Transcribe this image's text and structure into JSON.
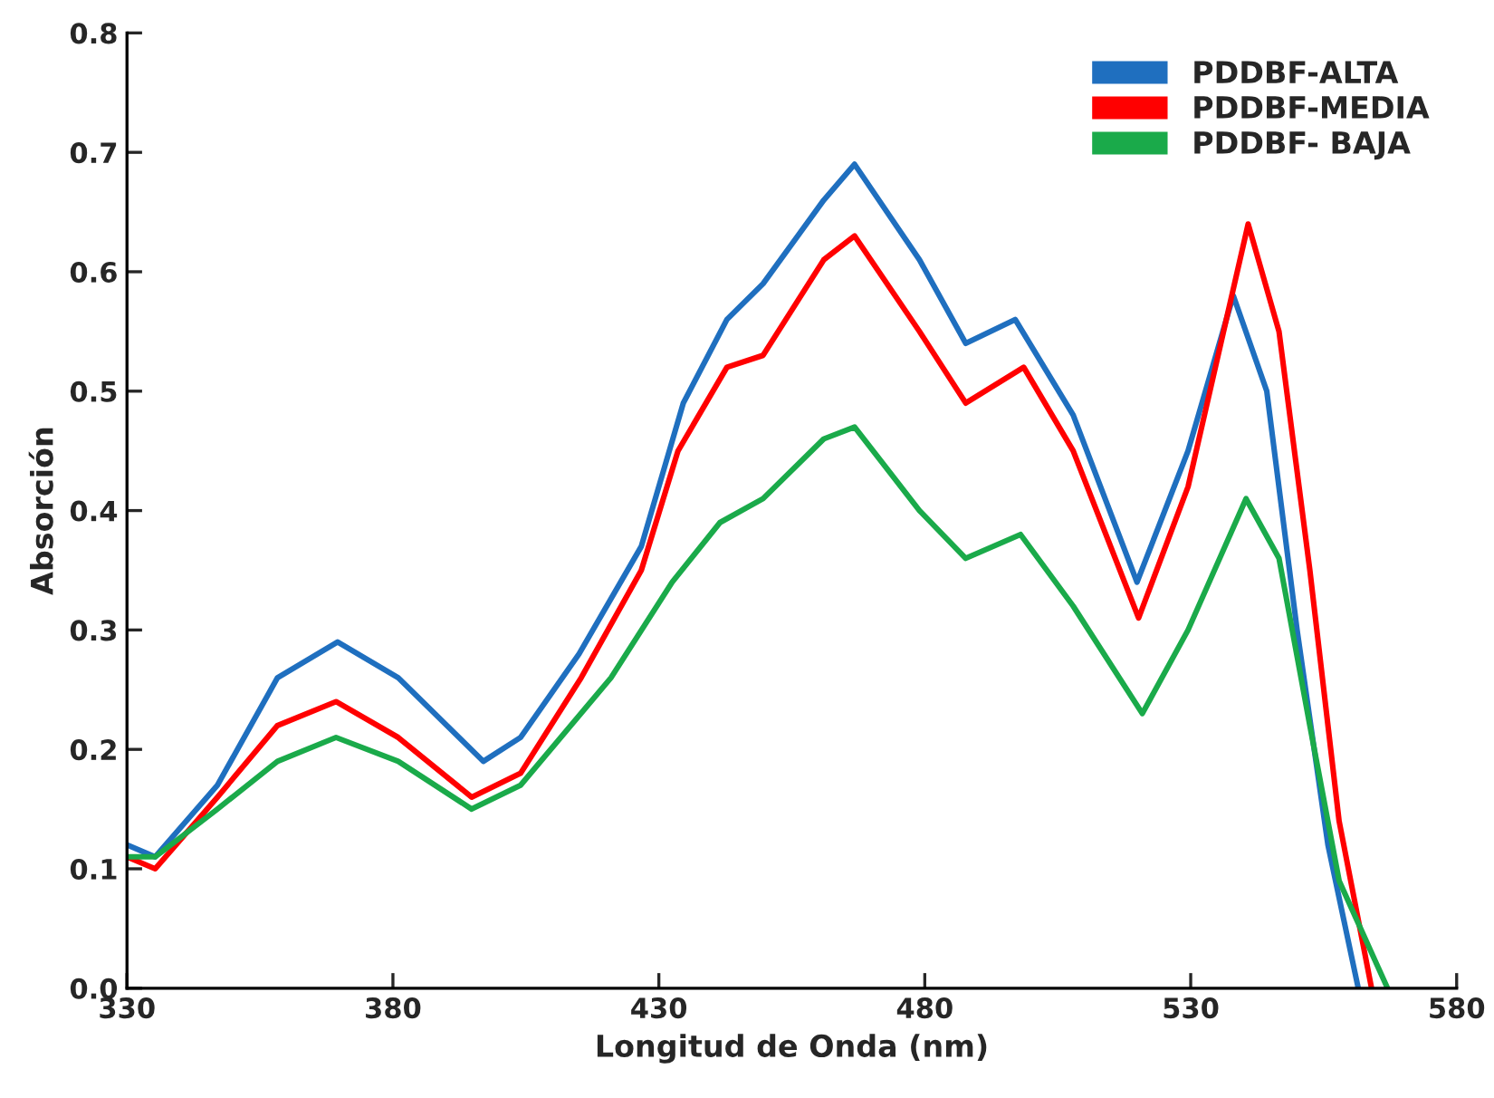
{
  "chart_data": {
    "type": "line",
    "xlabel": "Longitud de Onda (nm)",
    "ylabel": "Absorción",
    "xlim": [
      330,
      580
    ],
    "xticks": [
      330,
      380,
      430,
      480,
      530,
      580
    ],
    "ylim": [
      0,
      0.8
    ],
    "yticks": [
      {
        "value": 0,
        "label": "0.0"
      },
      0.1,
      0.2,
      0.3,
      0.4,
      0.5,
      0.6,
      0.7,
      0.8
    ],
    "grid": false,
    "legend": "top right",
    "line_style": "solid",
    "marker": "none",
    "series": [
      {
        "name": "PDDBF-ALTA",
        "color": "#1f6fbf",
        "x": [
          330,
          335.3,
          347,
          358.3,
          369.6,
          381,
          397,
          404,
          415,
          426.7,
          434.6,
          442.8,
          449.6,
          461,
          466.8,
          479,
          487.7,
          497,
          507.9,
          519.9,
          529.5,
          538,
          544.3,
          550,
          555.8,
          561.5
        ],
        "values": [
          0.12,
          0.11,
          0.17,
          0.26,
          0.29,
          0.26,
          0.19,
          0.21,
          0.28,
          0.37,
          0.49,
          0.56,
          0.59,
          0.66,
          0.69,
          0.61,
          0.54,
          0.56,
          0.48,
          0.34,
          0.45,
          0.58,
          0.5,
          0.3,
          0.12,
          0
        ]
      },
      {
        "name": "PDDBF-MEDIA",
        "color": "#ff0000",
        "x": [
          330,
          335.3,
          347,
          358.3,
          369.3,
          381,
          394.8,
          404,
          415.4,
          426.7,
          433.6,
          442.8,
          449.6,
          461,
          466.8,
          479,
          487.7,
          498.6,
          507.9,
          520.2,
          529.5,
          540.8,
          546.6,
          552.4,
          557.9,
          564
        ],
        "values": [
          0.11,
          0.1,
          0.16,
          0.22,
          0.24,
          0.21,
          0.16,
          0.18,
          0.26,
          0.35,
          0.45,
          0.52,
          0.53,
          0.61,
          0.63,
          0.55,
          0.49,
          0.52,
          0.45,
          0.31,
          0.42,
          0.64,
          0.55,
          0.35,
          0.14,
          0
        ]
      },
      {
        "name": "PDDBF- BAJA",
        "color": "#1aaa4a",
        "x": [
          330,
          335.3,
          347,
          358.3,
          369.3,
          381,
          394.8,
          404,
          421,
          432.5,
          441.5,
          449.6,
          461,
          466.8,
          479,
          487.7,
          498,
          507.9,
          520.9,
          529.5,
          540.4,
          546.6,
          552.4,
          557.9,
          567
        ],
        "values": [
          0.11,
          0.11,
          0.15,
          0.19,
          0.21,
          0.19,
          0.15,
          0.17,
          0.26,
          0.34,
          0.39,
          0.41,
          0.46,
          0.47,
          0.4,
          0.36,
          0.38,
          0.32,
          0.23,
          0.3,
          0.41,
          0.36,
          0.22,
          0.09,
          0
        ]
      }
    ]
  }
}
